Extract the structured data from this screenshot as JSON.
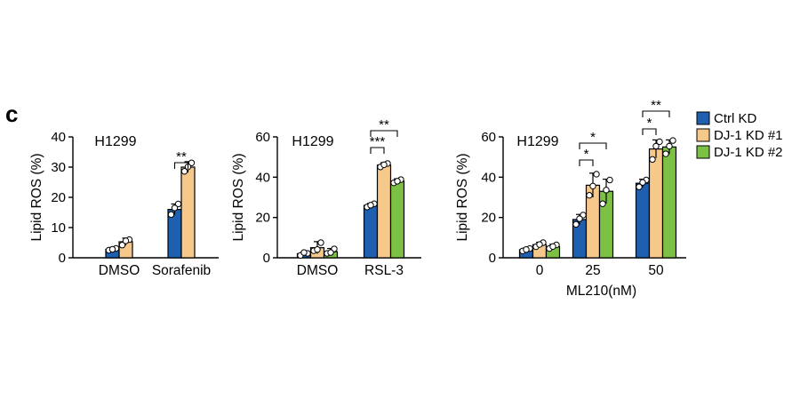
{
  "panel_letter": "c",
  "legend": {
    "entries": [
      {
        "label": "Ctrl KD",
        "color": "#1f5fb0"
      },
      {
        "label": "DJ-1 KD #1",
        "color": "#f6c98b"
      },
      {
        "label": "DJ-1 KD #2",
        "color": "#7cc143"
      }
    ]
  },
  "chart_data": [
    {
      "type": "bar",
      "title": "H1299",
      "ylabel": "Lipid ROS (%)",
      "xlabel": "",
      "ylim": [
        0,
        40
      ],
      "yticks": [
        0,
        10,
        20,
        30,
        40
      ],
      "categories": [
        "DMSO",
        "Sorafenib"
      ],
      "series": [
        {
          "name": "Ctrl KD",
          "values": [
            2.8,
            16.0
          ],
          "errors": [
            0.6,
            1.8
          ]
        },
        {
          "name": "DJ-1 KD #1",
          "values": [
            5.3,
            30.0
          ],
          "errors": [
            1.2,
            1.8
          ]
        }
      ],
      "points": [
        [
          [
            2.5,
            3.1,
            2.8
          ],
          [
            14.3,
            17.8,
            16.5
          ]
        ],
        [
          [
            4.2,
            6.0,
            5.6
          ],
          [
            28.6,
            31.4,
            30.1
          ]
        ]
      ],
      "significance": [
        {
          "label": "**",
          "category": 1,
          "from_series": 0,
          "to_series": 1
        }
      ]
    },
    {
      "type": "bar",
      "title": "H1299",
      "ylabel": "Lipid ROS (%)",
      "xlabel": "",
      "ylim": [
        0,
        60
      ],
      "yticks": [
        0,
        20,
        40,
        60
      ],
      "categories": [
        "DMSO",
        "RSL-3"
      ],
      "series": [
        {
          "name": "Ctrl KD",
          "values": [
            2.0,
            26.0
          ],
          "errors": [
            0.8,
            1.0
          ]
        },
        {
          "name": "DJ-1 KD #1",
          "values": [
            5.0,
            46.0
          ],
          "errors": [
            3.0,
            1.2
          ]
        },
        {
          "name": "DJ-1 KD #2",
          "values": [
            3.0,
            38.0
          ],
          "errors": [
            1.6,
            1.2
          ]
        }
      ],
      "points": [
        [
          [
            1.2,
            2.2,
            2.6
          ],
          [
            25.2,
            26.8,
            26.1
          ]
        ],
        [
          [
            3.5,
            7.5,
            4.1
          ],
          [
            45.1,
            46.8,
            46.2
          ]
        ],
        [
          [
            2.2,
            4.4,
            2.6
          ],
          [
            37.2,
            38.8,
            38.0
          ]
        ]
      ],
      "significance": [
        {
          "label": "**",
          "category": 1,
          "from_series": 0,
          "to_series": 2
        },
        {
          "label": "***",
          "category": 1,
          "from_series": 0,
          "to_series": 1
        }
      ]
    },
    {
      "type": "bar",
      "title": "H1299",
      "ylabel": "Lipid ROS (%)",
      "xlabel": "ML210(nM)",
      "ylim": [
        0,
        60
      ],
      "yticks": [
        0,
        20,
        40,
        60
      ],
      "categories": [
        "0",
        "25",
        "50"
      ],
      "series": [
        {
          "name": "Ctrl KD",
          "values": [
            4.0,
            19.0,
            37.0
          ],
          "errors": [
            0.8,
            2.5,
            2.0
          ]
        },
        {
          "name": "DJ-1 KD #1",
          "values": [
            6.5,
            36.0,
            54.0
          ],
          "errors": [
            1.2,
            6.0,
            4.5
          ]
        },
        {
          "name": "DJ-1 KD #2",
          "values": [
            5.5,
            33.0,
            55.0
          ],
          "errors": [
            1.2,
            6.0,
            3.5
          ]
        }
      ],
      "points": [
        [
          [
            3.4,
            4.6,
            4.1
          ],
          [
            16.6,
            21.2,
            19.4
          ],
          [
            35.2,
            38.6,
            37.4
          ]
        ],
        [
          [
            5.5,
            7.5,
            6.6
          ],
          [
            31.0,
            41.5,
            35.6
          ],
          [
            48.8,
            57.6,
            55.4
          ]
        ],
        [
          [
            4.6,
            6.4,
            5.6
          ],
          [
            26.8,
            38.6,
            33.6
          ],
          [
            51.6,
            58.2,
            55.4
          ]
        ]
      ],
      "significance": [
        {
          "label": "*",
          "category": 1,
          "from_series": 0,
          "to_series": 2
        },
        {
          "label": "*",
          "category": 1,
          "from_series": 0,
          "to_series": 1
        },
        {
          "label": "**",
          "category": 2,
          "from_series": 0,
          "to_series": 2
        },
        {
          "label": "*",
          "category": 2,
          "from_series": 0,
          "to_series": 1
        }
      ]
    }
  ]
}
